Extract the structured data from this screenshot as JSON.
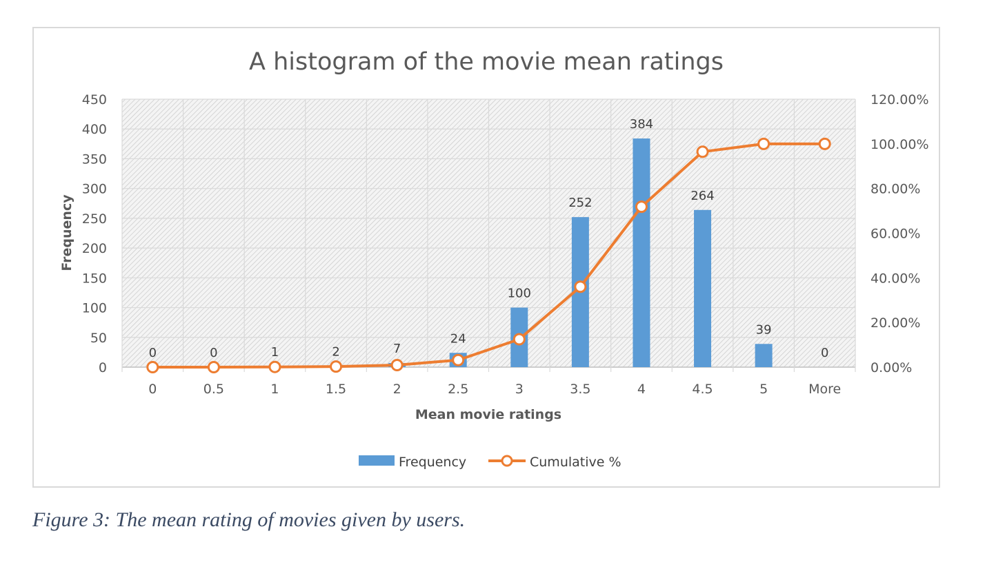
{
  "chart_data": {
    "type": "bar",
    "title": "A histogram of the movie mean ratings",
    "xlabel": "Mean movie ratings",
    "ylabel": "Frequency",
    "categories": [
      "0",
      "0.5",
      "1",
      "1.5",
      "2",
      "2.5",
      "3",
      "3.5",
      "4",
      "4.5",
      "5",
      "More"
    ],
    "series": [
      {
        "name": "Frequency",
        "kind": "bar",
        "axis": "left",
        "color": "#5b9bd5",
        "values": [
          0,
          0,
          1,
          2,
          7,
          24,
          100,
          252,
          384,
          264,
          39,
          0
        ],
        "data_labels": [
          "0",
          "0",
          "1",
          "2",
          "7",
          "24",
          "100",
          "252",
          "384",
          "264",
          "39",
          "0"
        ]
      },
      {
        "name": "Cumulative %",
        "kind": "line",
        "axis": "right",
        "color": "#ed7d31",
        "values": [
          0.0,
          0.0,
          0.0933,
          0.28,
          0.93,
          3.17,
          12.5,
          36.01,
          71.83,
          96.46,
          100.0,
          100.0
        ]
      }
    ],
    "ylim": [
      0,
      450
    ],
    "yticks": [
      "0",
      "50",
      "100",
      "150",
      "200",
      "250",
      "300",
      "350",
      "400",
      "450"
    ],
    "y2lim": [
      0,
      120
    ],
    "y2ticks": [
      "0.00%",
      "20.00%",
      "40.00%",
      "60.00%",
      "80.00%",
      "100.00%",
      "120.00%"
    ],
    "grid": true,
    "legend_position": "bottom"
  },
  "caption": "Figure 3: The mean rating of movies given by users."
}
